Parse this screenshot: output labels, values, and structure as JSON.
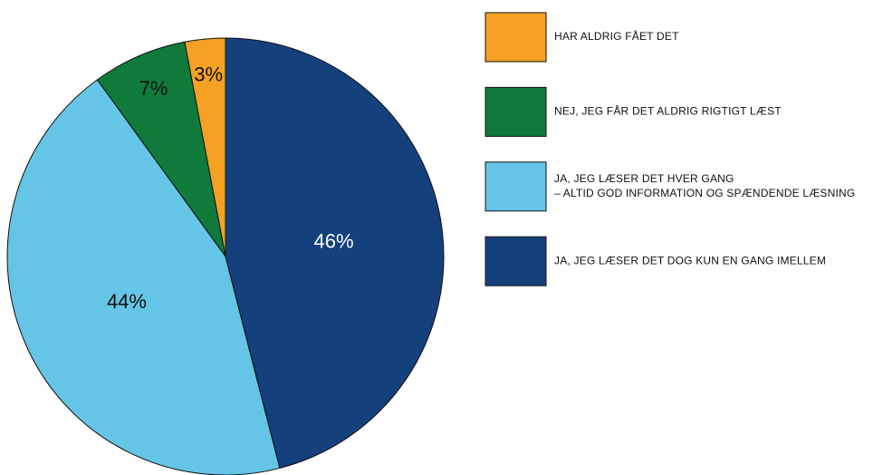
{
  "chart_data": {
    "type": "pie",
    "categories": [
      "HAR ALDRIG FÅET DET",
      "NEJ, JEG FÅR DET ALDRIG RIGTIGT LÆST",
      "JA, JEG LÆSER DET HVER GANG\n– ALTID GOD INFORMATION OG SPÆNDENDE LÆSNING",
      "JA, JEG LÆSER DET DOG KUN EN GANG IMELLEM"
    ],
    "values": [
      3,
      7,
      44,
      46
    ],
    "value_labels": [
      "3%",
      "7%",
      "44%",
      "46%"
    ],
    "colors": [
      "#f5a123",
      "#107a3b",
      "#65c5e6",
      "#14417c"
    ],
    "label_colors": [
      "#111111",
      "#111111",
      "#111111",
      "#ffffff"
    ]
  }
}
